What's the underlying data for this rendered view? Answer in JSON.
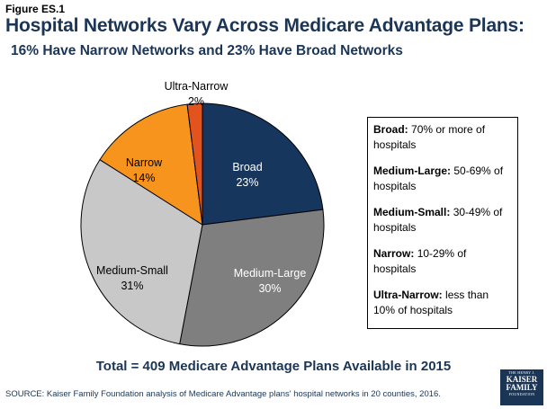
{
  "figure_label": "Figure ES.1",
  "title": "Hospital Networks Vary Across Medicare Advantage Plans:",
  "subtitle": "16% Have Narrow Networks and 23% Have Broad Networks",
  "chart_data": {
    "type": "pie",
    "slices": [
      {
        "label": "Broad",
        "value": 23,
        "value_label": "23%",
        "color": "#17365d",
        "text_color": "#ffffff"
      },
      {
        "label": "Medium-Large",
        "value": 30,
        "value_label": "30%",
        "color": "#7f7f7f",
        "text_color": "#ffffff"
      },
      {
        "label": "Medium-Small",
        "value": 31,
        "value_label": "31%",
        "color": "#c8c8c8",
        "text_color": "#000000"
      },
      {
        "label": "Narrow",
        "value": 14,
        "value_label": "14%",
        "color": "#f7941d",
        "text_color": "#000000"
      },
      {
        "label": "Ultra-Narrow",
        "value": 2,
        "value_label": "2%",
        "color": "#e2531e",
        "text_color": "#000000"
      }
    ],
    "start": "12 o'clock",
    "direction": "clockwise"
  },
  "legend": [
    {
      "term": "Broad:",
      "desc": "70% or more of hospitals"
    },
    {
      "term": "Medium-Large:",
      "desc": "50-69% of hospitals"
    },
    {
      "term": "Medium-Small:",
      "desc": "30-49% of hospitals"
    },
    {
      "term": "Narrow:",
      "desc": "10-29% of hospitals"
    },
    {
      "term": "Ultra-Narrow:",
      "desc": "less than 10% of hospitals"
    }
  ],
  "total_text": "Total = 409 Medicare Advantage Plans Available in 2015",
  "source_text": "SOURCE: Kaiser Family Foundation analysis of Medicare Advantage plans' hospital networks in 20 counties, 2016.",
  "logo": {
    "line1": "THE HENRY J.",
    "line2a": "KAISER",
    "line2b": "FAMILY",
    "line3": "FOUNDATION"
  }
}
